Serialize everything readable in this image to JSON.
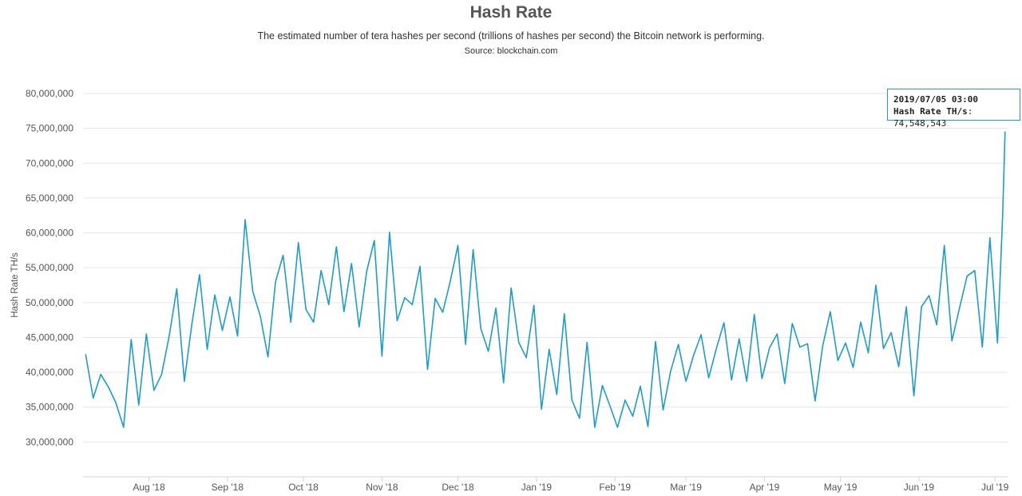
{
  "title": "Hash Rate",
  "subtitle": "The estimated number of tera hashes per second (trillions of hashes per second) the Bitcoin network is performing.",
  "source": "Source: blockchain.com",
  "tooltip": {
    "date": "2019/07/05 03:00",
    "label": "Hash Rate TH/s",
    "value": "74,548,543"
  },
  "colors": {
    "series": "#1a9dd0",
    "grid": "#e6e6e6",
    "axis": "#ccd6eb"
  },
  "chart_data": {
    "type": "line",
    "ylabel": "Hash Rate TH/s",
    "ylim": [
      25000000,
      80000000
    ],
    "yticks": [
      30000000,
      35000000,
      40000000,
      45000000,
      50000000,
      55000000,
      60000000,
      65000000,
      70000000,
      75000000,
      80000000
    ],
    "ytick_labels": [
      "30,000,000",
      "35,000,000",
      "40,000,000",
      "45,000,000",
      "50,000,000",
      "55,000,000",
      "60,000,000",
      "65,000,000",
      "70,000,000",
      "75,000,000",
      "80,000,000"
    ],
    "xlim": [
      "2018-07-06",
      "2019-07-06"
    ],
    "xticks": [
      "2018-08-01",
      "2018-09-01",
      "2018-10-01",
      "2018-11-01",
      "2018-12-01",
      "2019-01-01",
      "2019-02-01",
      "2019-03-01",
      "2019-04-01",
      "2019-05-01",
      "2019-06-01",
      "2019-07-01"
    ],
    "xtick_labels": [
      "Aug '18",
      "Sep '18",
      "Oct '18",
      "Nov '18",
      "Dec '18",
      "Jan '19",
      "Feb '19",
      "Mar '19",
      "Apr '19",
      "May '19",
      "Jun '19",
      "Jul '19"
    ],
    "grid": true,
    "series": [
      {
        "x": [
          "2018-07-07",
          "2018-07-10",
          "2018-07-13",
          "2018-07-16",
          "2018-07-19",
          "2018-07-22",
          "2018-07-25",
          "2018-07-28",
          "2018-07-31",
          "2018-08-03",
          "2018-08-06",
          "2018-08-09",
          "2018-08-12",
          "2018-08-15",
          "2018-08-18",
          "2018-08-21",
          "2018-08-24",
          "2018-08-27",
          "2018-08-30",
          "2018-09-02",
          "2018-09-05",
          "2018-09-08",
          "2018-09-11",
          "2018-09-14",
          "2018-09-17",
          "2018-09-20",
          "2018-09-23",
          "2018-09-26",
          "2018-09-29",
          "2018-10-02",
          "2018-10-05",
          "2018-10-08",
          "2018-10-11",
          "2018-10-14",
          "2018-10-17",
          "2018-10-20",
          "2018-10-23",
          "2018-10-26",
          "2018-10-29",
          "2018-11-01",
          "2018-11-04",
          "2018-11-07",
          "2018-11-10",
          "2018-11-13",
          "2018-11-16",
          "2018-11-19",
          "2018-11-22",
          "2018-11-25",
          "2018-11-28",
          "2018-12-01",
          "2018-12-04",
          "2018-12-07",
          "2018-12-10",
          "2018-12-13",
          "2018-12-16",
          "2018-12-19",
          "2018-12-22",
          "2018-12-25",
          "2018-12-28",
          "2018-12-31",
          "2019-01-03",
          "2019-01-06",
          "2019-01-09",
          "2019-01-12",
          "2019-01-15",
          "2019-01-18",
          "2019-01-21",
          "2019-01-24",
          "2019-01-27",
          "2019-01-30",
          "2019-02-02",
          "2019-02-05",
          "2019-02-08",
          "2019-02-11",
          "2019-02-14",
          "2019-02-17",
          "2019-02-20",
          "2019-02-23",
          "2019-02-26",
          "2019-03-01",
          "2019-03-04",
          "2019-03-07",
          "2019-03-10",
          "2019-03-13",
          "2019-03-16",
          "2019-03-19",
          "2019-03-22",
          "2019-03-25",
          "2019-03-28",
          "2019-03-31",
          "2019-04-03",
          "2019-04-06",
          "2019-04-09",
          "2019-04-12",
          "2019-04-15",
          "2019-04-18",
          "2019-04-21",
          "2019-04-24",
          "2019-04-27",
          "2019-04-30",
          "2019-05-03",
          "2019-05-06",
          "2019-05-09",
          "2019-05-12",
          "2019-05-15",
          "2019-05-18",
          "2019-05-21",
          "2019-05-24",
          "2019-05-27",
          "2019-05-30",
          "2019-06-02",
          "2019-06-05",
          "2019-06-08",
          "2019-06-11",
          "2019-06-14",
          "2019-06-17",
          "2019-06-20",
          "2019-06-23",
          "2019-06-26",
          "2019-06-29",
          "2019-07-02",
          "2019-07-04",
          "2019-07-05"
        ],
        "values": [
          42600000,
          36300000,
          39700000,
          37900000,
          35600000,
          32100000,
          44700000,
          35300000,
          45500000,
          37400000,
          39700000,
          45200000,
          52000000,
          38700000,
          47000000,
          54000000,
          43300000,
          51100000,
          46000000,
          50800000,
          45200000,
          61900000,
          51600000,
          48000000,
          42200000,
          53000000,
          56800000,
          47200000,
          58600000,
          49000000,
          47200000,
          54600000,
          49700000,
          58000000,
          48700000,
          55600000,
          46500000,
          54500000,
          58900000,
          42300000,
          60100000,
          47400000,
          50700000,
          49700000,
          55200000,
          40400000,
          50600000,
          48600000,
          53100000,
          58200000,
          44000000,
          57600000,
          46300000,
          43000000,
          49200000,
          38500000,
          52100000,
          44300000,
          42100000,
          49600000,
          34700000,
          43300000,
          36800000,
          48400000,
          36000000,
          33400000,
          44300000,
          32100000,
          38100000,
          35200000,
          32100000,
          36000000,
          33700000,
          38000000,
          32200000,
          44400000,
          34600000,
          40200000,
          44000000,
          38700000,
          42400000,
          45400000,
          39200000,
          43400000,
          47100000,
          38900000,
          44800000,
          38700000,
          48300000,
          39100000,
          43500000,
          45500000,
          38400000,
          47000000,
          43600000,
          44100000,
          35900000,
          43800000,
          48700000,
          41700000,
          44200000,
          40700000,
          47200000,
          42800000,
          52500000,
          43400000,
          45700000,
          40800000,
          49400000,
          36600000,
          49400000,
          51000000,
          46800000,
          58200000,
          44500000,
          49200000,
          53800000,
          54600000,
          43600000,
          59300000,
          44200000,
          62300000,
          74548543
        ],
        "name": ""
      }
    ]
  }
}
